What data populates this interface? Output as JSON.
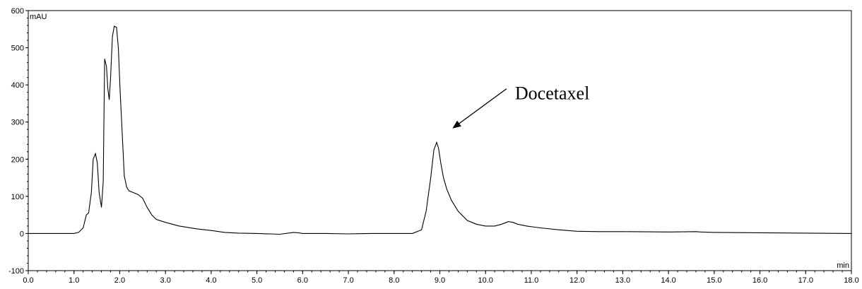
{
  "chart_data": {
    "type": "line",
    "title": "",
    "xlabel": "min",
    "ylabel": "mAU",
    "xlim": [
      0,
      18
    ],
    "ylim": [
      -100,
      600
    ],
    "grid": false,
    "legend": "none",
    "x_ticks": [
      "0.0",
      "1.0",
      "2.0",
      "3.0",
      "4.0",
      "5.0",
      "6.0",
      "7.0",
      "8.0",
      "9.0",
      "10.0",
      "11.0",
      "12.0",
      "13.0",
      "14.0",
      "15.0",
      "16.0",
      "17.0",
      "18.0"
    ],
    "y_ticks": [
      "-100",
      "0",
      "100",
      "200",
      "300",
      "400",
      "500",
      "600"
    ],
    "line_color": "#000000",
    "series": [
      {
        "x": [
          0.0,
          0.5,
          1.0,
          1.1,
          1.2,
          1.27,
          1.32,
          1.38,
          1.42,
          1.47,
          1.51,
          1.55,
          1.6,
          1.64,
          1.67,
          1.71,
          1.74,
          1.77,
          1.8,
          1.84,
          1.88,
          1.93,
          1.97,
          2.01,
          2.05,
          2.1,
          2.15,
          2.2,
          2.3,
          2.4,
          2.5,
          2.6,
          2.7,
          2.8,
          3.0,
          3.3,
          3.7,
          4.0,
          4.3,
          4.6,
          5.0,
          5.5,
          5.8,
          5.9,
          6.0,
          6.5,
          7.0,
          7.5,
          8.0,
          8.4,
          8.6,
          8.7,
          8.8,
          8.87,
          8.93,
          8.97,
          9.02,
          9.08,
          9.15,
          9.25,
          9.4,
          9.6,
          9.8,
          10.0,
          10.2,
          10.35,
          10.5,
          10.6,
          10.7,
          10.9,
          11.2,
          11.6,
          12.0,
          12.5,
          13.0,
          14.0,
          14.6,
          14.7,
          15.0,
          16.0,
          17.0,
          18.0
        ],
        "y": [
          0,
          0,
          0,
          3,
          15,
          50,
          55,
          110,
          200,
          215,
          190,
          110,
          70,
          140,
          470,
          450,
          390,
          360,
          420,
          530,
          558,
          555,
          500,
          380,
          280,
          155,
          125,
          115,
          110,
          105,
          95,
          70,
          50,
          38,
          30,
          20,
          12,
          8,
          3,
          1,
          0,
          -2,
          3,
          2,
          0,
          0,
          -1,
          0,
          0,
          0,
          10,
          60,
          150,
          225,
          245,
          230,
          190,
          150,
          120,
          90,
          60,
          35,
          25,
          20,
          20,
          25,
          32,
          30,
          25,
          20,
          15,
          10,
          6,
          5,
          5,
          4,
          5,
          4,
          3,
          2,
          1,
          0
        ]
      }
    ],
    "annotations": [
      {
        "text": "Docetaxel",
        "arrow_to": {
          "x": 9.3,
          "y": 285
        }
      }
    ]
  }
}
